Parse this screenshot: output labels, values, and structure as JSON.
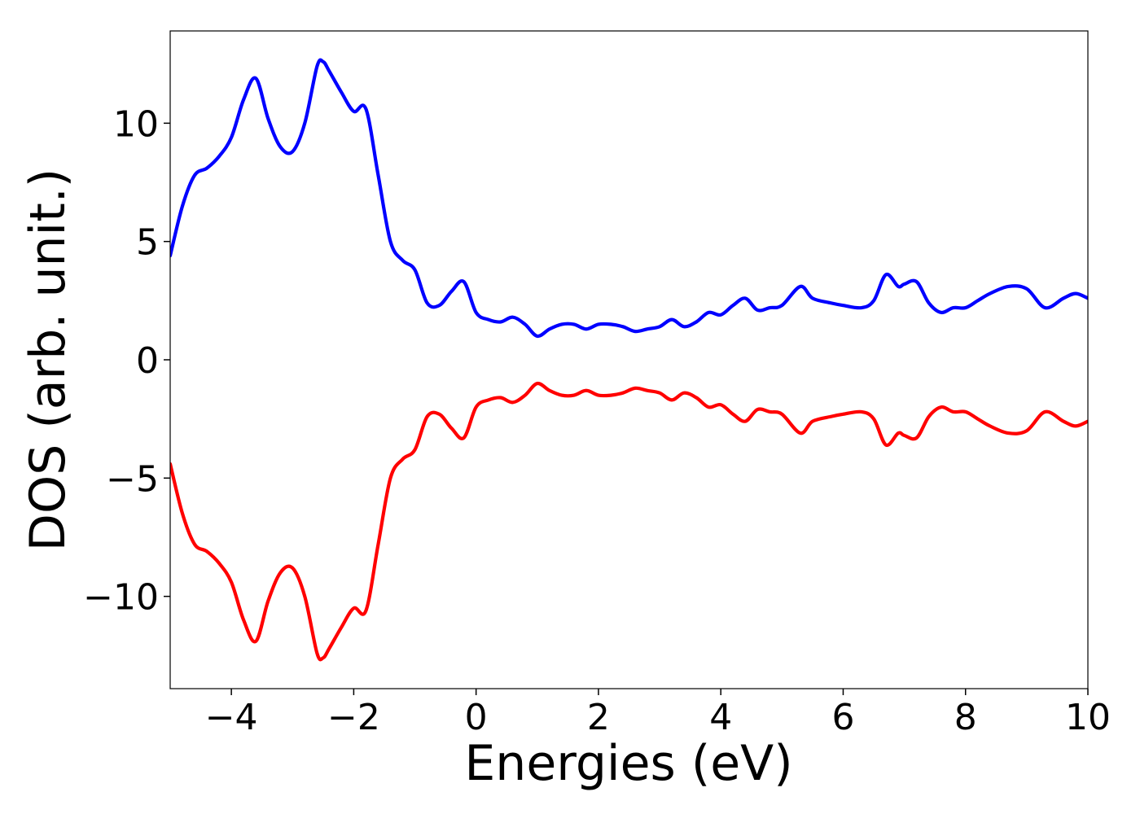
{
  "chart_data": {
    "type": "line",
    "title": "",
    "xlabel": "Energies (eV)",
    "ylabel": "DOS (arb. unit.)",
    "xlim": [
      -5,
      10
    ],
    "ylim": [
      -13.9,
      13.9
    ],
    "xticks": [
      -4,
      -2,
      0,
      2,
      4,
      6,
      8,
      10
    ],
    "xtick_labels": [
      "−4",
      "−2",
      "0",
      "2",
      "4",
      "6",
      "8",
      "10"
    ],
    "yticks": [
      10,
      5,
      0,
      -5,
      -10
    ],
    "ytick_labels": [
      "10",
      "5",
      "0",
      "−5",
      "−10"
    ],
    "grid": false,
    "legend": "none",
    "series": [
      {
        "color": "#0000ff",
        "x": [
          -5.0,
          -4.8,
          -4.6,
          -4.4,
          -4.2,
          -4.0,
          -3.8,
          -3.6,
          -3.4,
          -3.2,
          -3.0,
          -2.8,
          -2.6,
          -2.5,
          -2.4,
          -2.2,
          -2.0,
          -1.8,
          -1.6,
          -1.4,
          -1.2,
          -1.0,
          -0.8,
          -0.6,
          -0.4,
          -0.2,
          0.0,
          0.2,
          0.4,
          0.6,
          0.8,
          1.0,
          1.2,
          1.4,
          1.6,
          1.8,
          2.0,
          2.2,
          2.4,
          2.6,
          2.8,
          3.0,
          3.2,
          3.4,
          3.6,
          3.8,
          4.0,
          4.2,
          4.4,
          4.6,
          4.8,
          5.0,
          5.3,
          5.5,
          5.8,
          6.0,
          6.3,
          6.5,
          6.7,
          6.9,
          7.0,
          7.2,
          7.4,
          7.6,
          7.8,
          8.0,
          8.2,
          8.4,
          8.7,
          9.0,
          9.3,
          9.6,
          9.8,
          10.0
        ],
        "y": [
          4.4,
          6.5,
          7.8,
          8.1,
          8.6,
          9.4,
          11.0,
          11.9,
          10.2,
          9.0,
          8.8,
          10.0,
          12.4,
          12.6,
          12.2,
          11.3,
          10.5,
          10.6,
          7.8,
          5.0,
          4.2,
          3.8,
          2.4,
          2.3,
          2.9,
          3.3,
          2.0,
          1.7,
          1.6,
          1.8,
          1.5,
          1.0,
          1.3,
          1.5,
          1.5,
          1.3,
          1.5,
          1.5,
          1.4,
          1.2,
          1.3,
          1.4,
          1.7,
          1.4,
          1.6,
          2.0,
          1.9,
          2.3,
          2.6,
          2.1,
          2.2,
          2.3,
          3.1,
          2.6,
          2.4,
          2.3,
          2.2,
          2.5,
          3.6,
          3.1,
          3.2,
          3.3,
          2.4,
          2.0,
          2.2,
          2.2,
          2.5,
          2.8,
          3.1,
          3.0,
          2.2,
          2.6,
          2.8,
          2.6
        ]
      },
      {
        "color": "#ff0000",
        "x": [
          -5.0,
          -4.8,
          -4.6,
          -4.4,
          -4.2,
          -4.0,
          -3.8,
          -3.6,
          -3.4,
          -3.2,
          -3.0,
          -2.8,
          -2.6,
          -2.5,
          -2.4,
          -2.2,
          -2.0,
          -1.8,
          -1.6,
          -1.4,
          -1.2,
          -1.0,
          -0.8,
          -0.6,
          -0.4,
          -0.2,
          0.0,
          0.2,
          0.4,
          0.6,
          0.8,
          1.0,
          1.2,
          1.4,
          1.6,
          1.8,
          2.0,
          2.2,
          2.4,
          2.6,
          2.8,
          3.0,
          3.2,
          3.4,
          3.6,
          3.8,
          4.0,
          4.2,
          4.4,
          4.6,
          4.8,
          5.0,
          5.3,
          5.5,
          5.8,
          6.0,
          6.3,
          6.5,
          6.7,
          6.9,
          7.0,
          7.2,
          7.4,
          7.6,
          7.8,
          8.0,
          8.2,
          8.4,
          8.7,
          9.0,
          9.3,
          9.6,
          9.8,
          10.0
        ],
        "y": [
          -4.4,
          -6.5,
          -7.8,
          -8.1,
          -8.6,
          -9.4,
          -11.0,
          -11.9,
          -10.2,
          -9.0,
          -8.8,
          -10.0,
          -12.4,
          -12.6,
          -12.2,
          -11.3,
          -10.5,
          -10.6,
          -7.8,
          -5.0,
          -4.2,
          -3.8,
          -2.4,
          -2.3,
          -2.9,
          -3.3,
          -2.0,
          -1.7,
          -1.6,
          -1.8,
          -1.5,
          -1.0,
          -1.3,
          -1.5,
          -1.5,
          -1.3,
          -1.5,
          -1.5,
          -1.4,
          -1.2,
          -1.3,
          -1.4,
          -1.7,
          -1.4,
          -1.6,
          -2.0,
          -1.9,
          -2.3,
          -2.6,
          -2.1,
          -2.2,
          -2.3,
          -3.1,
          -2.6,
          -2.4,
          -2.3,
          -2.2,
          -2.5,
          -3.6,
          -3.1,
          -3.2,
          -3.3,
          -2.4,
          -2.0,
          -2.2,
          -2.2,
          -2.5,
          -2.8,
          -3.1,
          -3.0,
          -2.2,
          -2.6,
          -2.8,
          -2.6
        ]
      }
    ]
  }
}
